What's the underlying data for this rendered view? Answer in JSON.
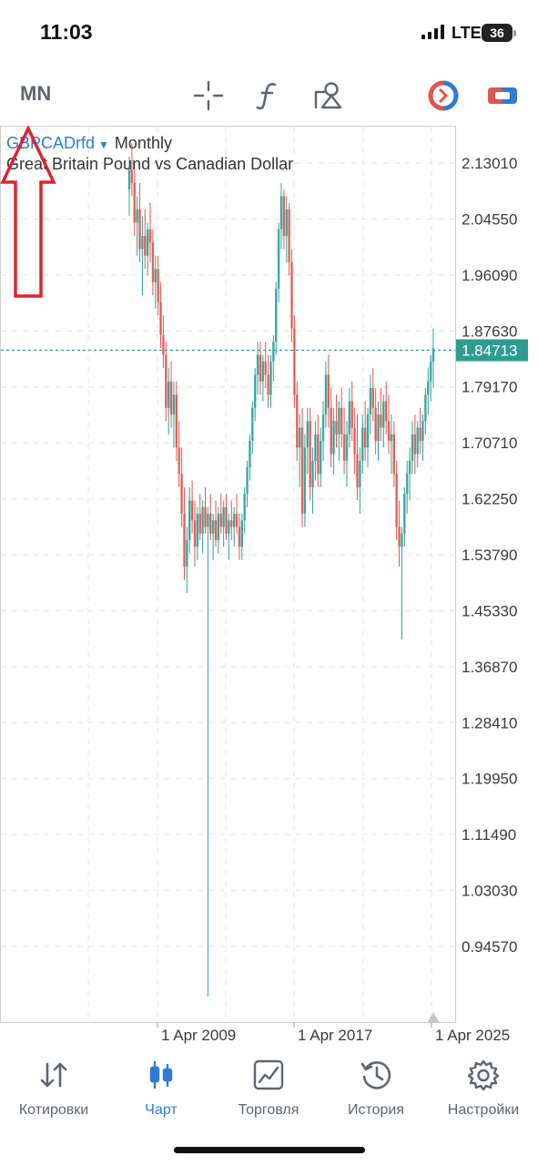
{
  "status_bar": {
    "time": "11:03",
    "network": "LTE",
    "battery": "36"
  },
  "toolbar": {
    "timeframe": "MN",
    "icons": [
      "crosshair-icon",
      "function-icon",
      "objects-icon",
      "trade-icon",
      "toggle-icon"
    ]
  },
  "chart": {
    "symbol": "GBPCADrfd",
    "period": "Monthly",
    "description": "Great Britain Pound vs Canadian Dollar",
    "current_price": "1.84713"
  },
  "chart_data": {
    "type": "candlestick",
    "price_axis": [
      "2.13010",
      "2.04550",
      "1.96090",
      "1.87630",
      "1.79170",
      "1.70710",
      "1.62250",
      "1.53790",
      "1.45330",
      "1.36870",
      "1.28410",
      "1.19950",
      "1.11490",
      "1.03030",
      "0.94570"
    ],
    "time_axis": [
      "1 Apr 2009",
      "1 Apr 2017",
      "1 Apr 2025"
    ],
    "last_price": 1.84713,
    "colors": {
      "up": "#2aa198",
      "down": "#e0554f",
      "grid": "#e6e6e6",
      "price_line": "#2e9c8f"
    },
    "candles": [
      [
        2.09,
        2.14,
        2.05,
        2.12
      ],
      [
        2.12,
        2.16,
        2.08,
        2.1
      ],
      [
        2.1,
        2.13,
        2.02,
        2.04
      ],
      [
        2.04,
        2.08,
        1.99,
        2.06
      ],
      [
        2.06,
        2.1,
        1.98,
        2.0
      ],
      [
        2.0,
        2.05,
        1.93,
        2.02
      ],
      [
        2.02,
        2.06,
        1.97,
        1.99
      ],
      [
        1.99,
        2.04,
        1.96,
        2.03
      ],
      [
        2.03,
        2.07,
        1.98,
        2.01
      ],
      [
        2.01,
        2.03,
        1.93,
        1.95
      ],
      [
        1.95,
        1.99,
        1.91,
        1.97
      ],
      [
        1.97,
        1.99,
        1.9,
        1.92
      ],
      [
        1.92,
        1.95,
        1.85,
        1.87
      ],
      [
        1.87,
        1.9,
        1.82,
        1.84
      ],
      [
        1.84,
        1.86,
        1.74,
        1.76
      ],
      [
        1.76,
        1.82,
        1.72,
        1.8
      ],
      [
        1.8,
        1.83,
        1.73,
        1.75
      ],
      [
        1.75,
        1.8,
        1.7,
        1.78
      ],
      [
        1.78,
        1.8,
        1.68,
        1.7
      ],
      [
        1.7,
        1.74,
        1.64,
        1.66
      ],
      [
        1.66,
        1.7,
        1.58,
        1.6
      ],
      [
        1.6,
        1.64,
        1.5,
        1.52
      ],
      [
        1.52,
        1.58,
        1.48,
        1.56
      ],
      [
        1.56,
        1.64,
        1.54,
        1.62
      ],
      [
        1.62,
        1.65,
        1.57,
        1.59
      ],
      [
        1.59,
        1.62,
        1.52,
        1.55
      ],
      [
        1.55,
        1.61,
        1.53,
        1.6
      ],
      [
        1.6,
        1.63,
        1.56,
        1.57
      ],
      [
        1.57,
        1.62,
        1.54,
        1.61
      ],
      [
        1.61,
        1.64,
        1.57,
        1.58
      ],
      [
        1.58,
        1.61,
        0.87,
        1.6
      ],
      [
        1.6,
        1.63,
        1.56,
        1.57
      ],
      [
        1.57,
        1.6,
        1.53,
        1.59
      ],
      [
        1.59,
        1.62,
        1.55,
        1.56
      ],
      [
        1.56,
        1.61,
        1.54,
        1.6
      ],
      [
        1.6,
        1.63,
        1.57,
        1.58
      ],
      [
        1.58,
        1.62,
        1.55,
        1.61
      ],
      [
        1.61,
        1.63,
        1.56,
        1.57
      ],
      [
        1.57,
        1.6,
        1.53,
        1.59
      ],
      [
        1.59,
        1.62,
        1.56,
        1.58
      ],
      [
        1.58,
        1.61,
        1.55,
        1.6
      ],
      [
        1.6,
        1.63,
        1.57,
        1.58
      ],
      [
        1.58,
        1.6,
        1.53,
        1.55
      ],
      [
        1.55,
        1.6,
        1.53,
        1.59
      ],
      [
        1.59,
        1.64,
        1.57,
        1.63
      ],
      [
        1.63,
        1.68,
        1.61,
        1.67
      ],
      [
        1.67,
        1.72,
        1.65,
        1.71
      ],
      [
        1.71,
        1.77,
        1.69,
        1.76
      ],
      [
        1.76,
        1.82,
        1.74,
        1.81
      ],
      [
        1.81,
        1.86,
        1.78,
        1.84
      ],
      [
        1.84,
        1.86,
        1.78,
        1.8
      ],
      [
        1.8,
        1.84,
        1.77,
        1.83
      ],
      [
        1.83,
        1.86,
        1.79,
        1.81
      ],
      [
        1.81,
        1.84,
        1.76,
        1.78
      ],
      [
        1.78,
        1.84,
        1.76,
        1.83
      ],
      [
        1.83,
        1.87,
        1.8,
        1.86
      ],
      [
        1.86,
        1.95,
        1.84,
        1.94
      ],
      [
        1.94,
        2.04,
        1.92,
        2.03
      ],
      [
        2.03,
        2.1,
        2.0,
        2.08
      ],
      [
        2.08,
        2.09,
        2.0,
        2.02
      ],
      [
        2.02,
        2.08,
        1.98,
        2.06
      ],
      [
        2.06,
        2.07,
        1.96,
        1.98
      ],
      [
        1.98,
        2.0,
        1.86,
        1.88
      ],
      [
        1.88,
        1.9,
        1.76,
        1.78
      ],
      [
        1.78,
        1.8,
        1.68,
        1.7
      ],
      [
        1.7,
        1.75,
        1.64,
        1.73
      ],
      [
        1.73,
        1.76,
        1.58,
        1.6
      ],
      [
        1.6,
        1.72,
        1.58,
        1.7
      ],
      [
        1.7,
        1.76,
        1.66,
        1.74
      ],
      [
        1.74,
        1.76,
        1.62,
        1.64
      ],
      [
        1.64,
        1.7,
        1.6,
        1.68
      ],
      [
        1.68,
        1.74,
        1.65,
        1.72
      ],
      [
        1.72,
        1.75,
        1.64,
        1.66
      ],
      [
        1.66,
        1.73,
        1.64,
        1.71
      ],
      [
        1.71,
        1.77,
        1.68,
        1.75
      ],
      [
        1.75,
        1.83,
        1.73,
        1.81
      ],
      [
        1.81,
        1.84,
        1.73,
        1.76
      ],
      [
        1.76,
        1.79,
        1.67,
        1.69
      ],
      [
        1.69,
        1.76,
        1.66,
        1.74
      ],
      [
        1.74,
        1.78,
        1.7,
        1.72
      ],
      [
        1.72,
        1.77,
        1.68,
        1.76
      ],
      [
        1.76,
        1.79,
        1.7,
        1.72
      ],
      [
        1.72,
        1.76,
        1.66,
        1.68
      ],
      [
        1.68,
        1.74,
        1.64,
        1.72
      ],
      [
        1.72,
        1.79,
        1.7,
        1.77
      ],
      [
        1.77,
        1.8,
        1.71,
        1.73
      ],
      [
        1.73,
        1.76,
        1.66,
        1.69
      ],
      [
        1.69,
        1.75,
        1.62,
        1.64
      ],
      [
        1.64,
        1.7,
        1.6,
        1.68
      ],
      [
        1.68,
        1.75,
        1.66,
        1.73
      ],
      [
        1.73,
        1.77,
        1.68,
        1.7
      ],
      [
        1.7,
        1.76,
        1.67,
        1.75
      ],
      [
        1.75,
        1.81,
        1.72,
        1.79
      ],
      [
        1.79,
        1.82,
        1.74,
        1.76
      ],
      [
        1.76,
        1.79,
        1.69,
        1.71
      ],
      [
        1.71,
        1.77,
        1.68,
        1.75
      ],
      [
        1.75,
        1.79,
        1.71,
        1.73
      ],
      [
        1.73,
        1.78,
        1.7,
        1.77
      ],
      [
        1.77,
        1.8,
        1.72,
        1.74
      ],
      [
        1.74,
        1.78,
        1.69,
        1.71
      ],
      [
        1.71,
        1.75,
        1.66,
        1.72
      ],
      [
        1.72,
        1.74,
        1.64,
        1.66
      ],
      [
        1.66,
        1.68,
        1.56,
        1.58
      ],
      [
        1.58,
        1.62,
        1.52,
        1.55
      ],
      [
        1.55,
        1.58,
        1.41,
        1.57
      ],
      [
        1.57,
        1.64,
        1.55,
        1.63
      ],
      [
        1.63,
        1.68,
        1.6,
        1.66
      ],
      [
        1.66,
        1.7,
        1.62,
        1.68
      ],
      [
        1.68,
        1.74,
        1.66,
        1.72
      ],
      [
        1.72,
        1.75,
        1.66,
        1.69
      ],
      [
        1.69,
        1.74,
        1.67,
        1.73
      ],
      [
        1.73,
        1.76,
        1.69,
        1.71
      ],
      [
        1.71,
        1.75,
        1.68,
        1.74
      ],
      [
        1.74,
        1.79,
        1.72,
        1.78
      ],
      [
        1.78,
        1.82,
        1.75,
        1.8
      ],
      [
        1.8,
        1.84,
        1.77,
        1.83
      ],
      [
        1.83,
        1.88,
        1.79,
        1.85
      ]
    ]
  },
  "nav": [
    {
      "label": "Котировки",
      "icon": "quotes-icon",
      "active": false
    },
    {
      "label": "Чарт",
      "icon": "candles-icon",
      "active": true
    },
    {
      "label": "Торговля",
      "icon": "trade-chart-icon",
      "active": false
    },
    {
      "label": "История",
      "icon": "history-icon",
      "active": false
    },
    {
      "label": "Настройки",
      "icon": "settings-icon",
      "active": false
    }
  ]
}
